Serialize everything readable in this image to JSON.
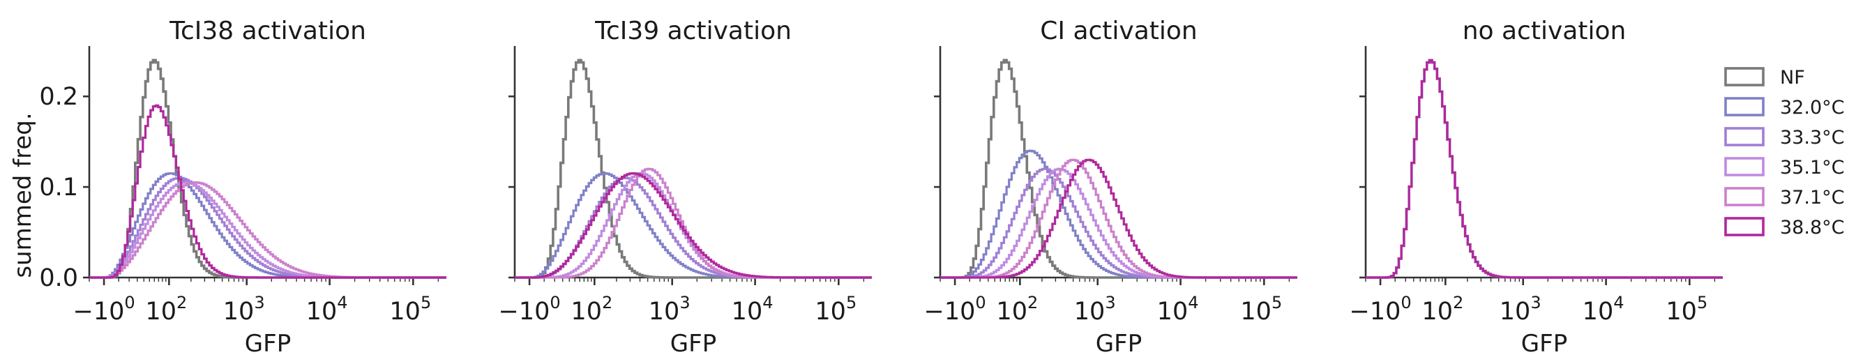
{
  "figure": {
    "ylabel": "summed freq.",
    "xlabel": "GFP",
    "yticks": [
      "0.0",
      "0.1",
      "0.2"
    ],
    "xtick_prefix": "−10",
    "xtick_base": "10",
    "xtick_exponents": [
      "0",
      "2",
      "3",
      "4",
      "5"
    ]
  },
  "legend": {
    "placement": "right",
    "items": [
      {
        "label": "NF",
        "color": "#7a7a7a"
      },
      {
        "label": "32.0°C",
        "color": "#8080c8"
      },
      {
        "label": "33.3°C",
        "color": "#a07fd4"
      },
      {
        "label": "35.1°C",
        "color": "#c08ae0"
      },
      {
        "label": "37.1°C",
        "color": "#cc80cc"
      },
      {
        "label": "38.8°C",
        "color": "#b0289c"
      }
    ]
  },
  "chart_data": [
    {
      "type": "histogram",
      "title": "TcI38 activation",
      "xlabel": "GFP",
      "ylabel": "summed freq.",
      "xscale": "symlog",
      "ylim": [
        0,
        0.25
      ],
      "series": [
        {
          "name": "NF",
          "peak_gfp": 60,
          "peak_freq": 0.24,
          "width": 0.28
        },
        {
          "name": "32.0°C",
          "peak_gfp": 105,
          "peak_freq": 0.115,
          "width": 0.5
        },
        {
          "name": "33.3°C",
          "peak_gfp": 140,
          "peak_freq": 0.11,
          "width": 0.52
        },
        {
          "name": "35.1°C",
          "peak_gfp": 170,
          "peak_freq": 0.105,
          "width": 0.54
        },
        {
          "name": "37.1°C",
          "peak_gfp": 230,
          "peak_freq": 0.105,
          "width": 0.56
        },
        {
          "name": "38.8°C",
          "peak_gfp": 65,
          "peak_freq": 0.19,
          "width": 0.32
        }
      ]
    },
    {
      "type": "histogram",
      "title": "TcI39 activation",
      "xlabel": "GFP",
      "ylabel": "",
      "xscale": "symlog",
      "ylim": [
        0,
        0.25
      ],
      "series": [
        {
          "name": "NF",
          "peak_gfp": 60,
          "peak_freq": 0.24,
          "width": 0.28
        },
        {
          "name": "32.0°C",
          "peak_gfp": 140,
          "peak_freq": 0.115,
          "width": 0.48
        },
        {
          "name": "33.3°C",
          "peak_gfp": 260,
          "peak_freq": 0.11,
          "width": 0.45
        },
        {
          "name": "35.1°C",
          "peak_gfp": 420,
          "peak_freq": 0.115,
          "width": 0.4
        },
        {
          "name": "37.1°C",
          "peak_gfp": 520,
          "peak_freq": 0.12,
          "width": 0.35
        },
        {
          "name": "38.8°C",
          "peak_gfp": 330,
          "peak_freq": 0.115,
          "width": 0.5
        }
      ]
    },
    {
      "type": "histogram",
      "title": "CI activation",
      "xlabel": "GFP",
      "ylabel": "",
      "xscale": "symlog",
      "ylim": [
        0,
        0.25
      ],
      "series": [
        {
          "name": "NF",
          "peak_gfp": 60,
          "peak_freq": 0.24,
          "width": 0.28
        },
        {
          "name": "32.0°C",
          "peak_gfp": 140,
          "peak_freq": 0.14,
          "width": 0.4
        },
        {
          "name": "33.3°C",
          "peak_gfp": 220,
          "peak_freq": 0.12,
          "width": 0.4
        },
        {
          "name": "35.1°C",
          "peak_gfp": 340,
          "peak_freq": 0.12,
          "width": 0.38
        },
        {
          "name": "37.1°C",
          "peak_gfp": 500,
          "peak_freq": 0.13,
          "width": 0.35
        },
        {
          "name": "38.8°C",
          "peak_gfp": 780,
          "peak_freq": 0.13,
          "width": 0.35
        }
      ]
    },
    {
      "type": "histogram",
      "title": "no activation",
      "xlabel": "GFP",
      "ylabel": "",
      "xscale": "symlog",
      "ylim": [
        0,
        0.25
      ],
      "series": [
        {
          "name": "NF",
          "peak_gfp": 60,
          "peak_freq": 0.24,
          "width": 0.28
        },
        {
          "name": "32.0°C",
          "peak_gfp": 60,
          "peak_freq": 0.24,
          "width": 0.28
        },
        {
          "name": "33.3°C",
          "peak_gfp": 60,
          "peak_freq": 0.24,
          "width": 0.28
        },
        {
          "name": "35.1°C",
          "peak_gfp": 60,
          "peak_freq": 0.24,
          "width": 0.28
        },
        {
          "name": "37.1°C",
          "peak_gfp": 60,
          "peak_freq": 0.24,
          "width": 0.28
        },
        {
          "name": "38.8°C",
          "peak_gfp": 60,
          "peak_freq": 0.24,
          "width": 0.28
        }
      ]
    }
  ]
}
